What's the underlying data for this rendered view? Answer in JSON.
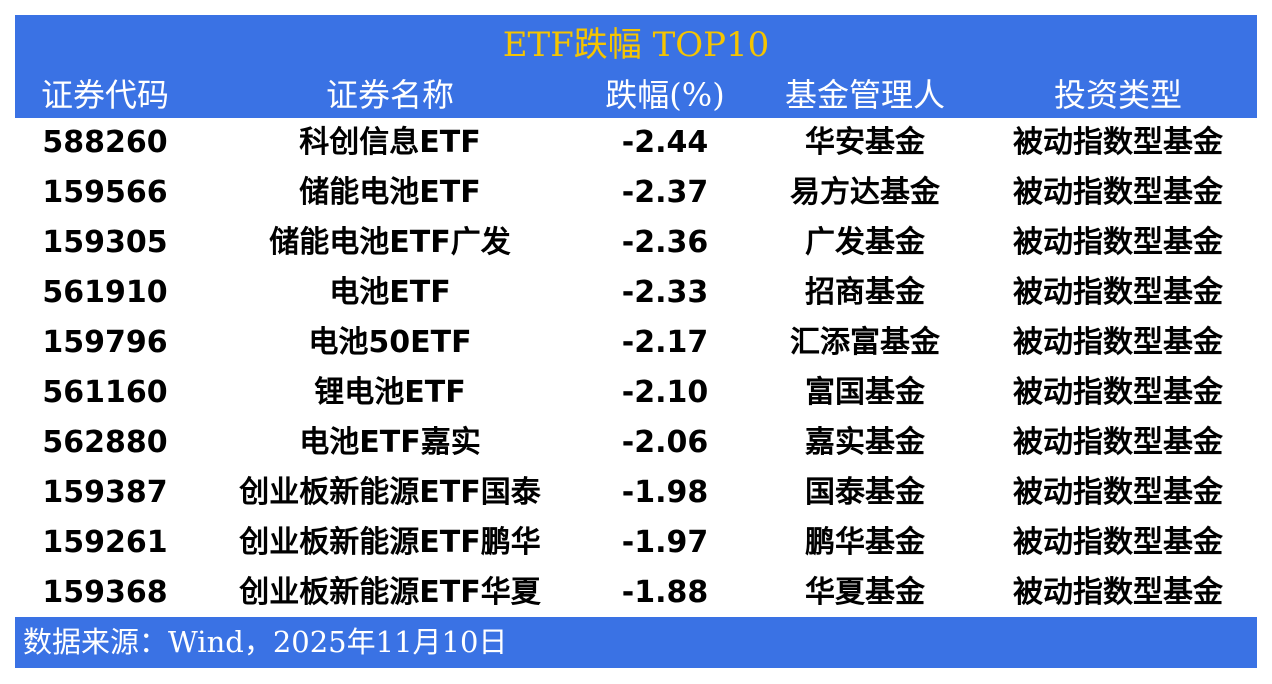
{
  "title": "ETF跌幅 TOP10",
  "columns": [
    "证券代码",
    "证券名称",
    "跌幅(%)",
    "基金管理人",
    "投资类型"
  ],
  "rows": [
    [
      "588260",
      "科创信息ETF",
      "-2.44",
      "华安基金",
      "被动指数型基金"
    ],
    [
      "159566",
      "储能电池ETF",
      "-2.37",
      "易方达基金",
      "被动指数型基金"
    ],
    [
      "159305",
      "储能电池ETF广发",
      "-2.36",
      "广发基金",
      "被动指数型基金"
    ],
    [
      "561910",
      "电池ETF",
      "-2.33",
      "招商基金",
      "被动指数型基金"
    ],
    [
      "159796",
      "电池50ETF",
      "-2.17",
      "汇添富基金",
      "被动指数型基金"
    ],
    [
      "561160",
      "锂电池ETF",
      "-2.10",
      "富国基金",
      "被动指数型基金"
    ],
    [
      "562880",
      "电池ETF嘉实",
      "-2.06",
      "嘉实基金",
      "被动指数型基金"
    ],
    [
      "159387",
      "创业板新能源ETF国泰",
      "-1.98",
      "国泰基金",
      "被动指数型基金"
    ],
    [
      "159261",
      "创业板新能源ETF鹏华",
      "-1.97",
      "鹏华基金",
      "被动指数型基金"
    ],
    [
      "159368",
      "创业板新能源ETF华夏",
      "-1.88",
      "华夏基金",
      "被动指数型基金"
    ]
  ],
  "source": "数据来源：Wind，2025年11月10日",
  "colors": {
    "header_bg": "#3a72e4",
    "title": "#f5c400"
  }
}
